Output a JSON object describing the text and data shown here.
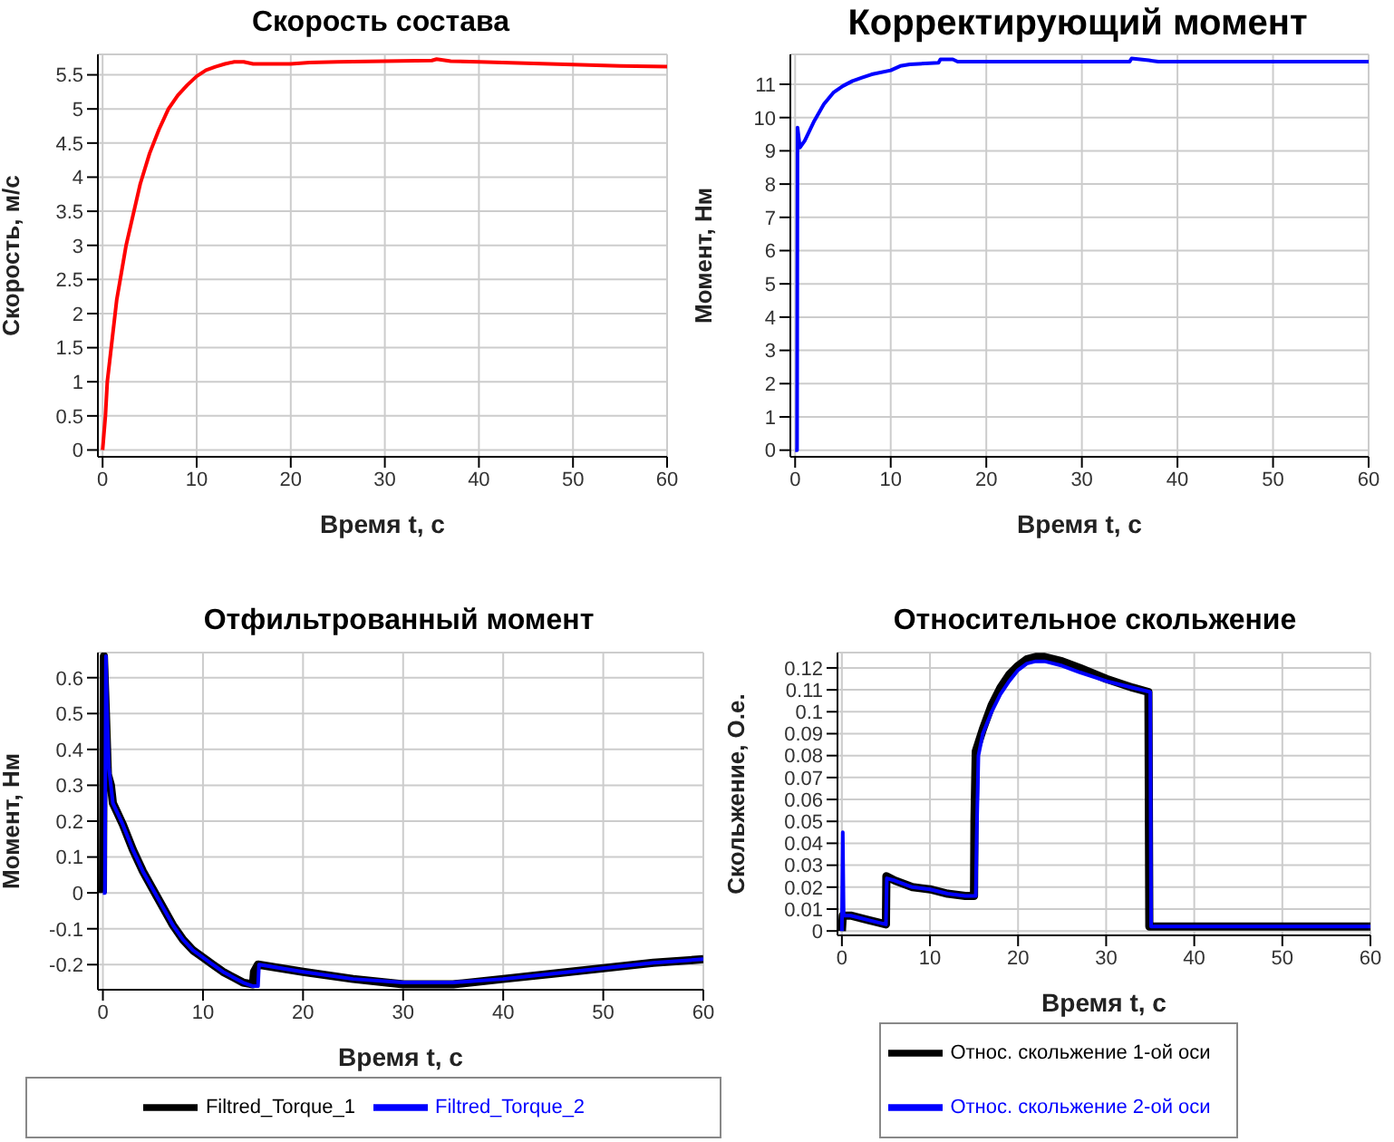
{
  "chart_data": [
    {
      "type": "line",
      "title": "Скорость состава",
      "xlabel": "Время t, с",
      "ylabel": "Скорость, м/с",
      "xlim": [
        -0.5,
        60
      ],
      "xticks": [
        0,
        10,
        20,
        30,
        40,
        50,
        60
      ],
      "ylim": [
        -0.1,
        5.8
      ],
      "yticks": [
        0,
        0.5,
        1,
        1.5,
        2,
        2.5,
        3,
        3.5,
        4,
        4.5,
        5,
        5.5
      ],
      "grid": true,
      "series": [
        {
          "color": "#ff0000",
          "x": [
            0,
            0.3,
            0.5,
            1,
            1.5,
            2,
            2.5,
            3,
            4,
            5,
            6,
            7,
            8,
            9,
            10,
            11,
            12,
            13,
            14,
            15,
            16,
            20,
            22,
            25,
            30,
            35,
            35.5,
            37,
            40,
            45,
            50,
            55,
            60
          ],
          "values": [
            0,
            0.5,
            1,
            1.6,
            2.2,
            2.6,
            3.0,
            3.3,
            3.9,
            4.35,
            4.7,
            5.0,
            5.2,
            5.35,
            5.48,
            5.57,
            5.62,
            5.66,
            5.69,
            5.69,
            5.66,
            5.66,
            5.68,
            5.69,
            5.7,
            5.71,
            5.73,
            5.7,
            5.69,
            5.67,
            5.65,
            5.63,
            5.62
          ]
        }
      ]
    },
    {
      "type": "line",
      "title": "Корректирующий момент",
      "xlabel": "Время t, с",
      "ylabel": "Момент, Нм",
      "xlim": [
        -0.5,
        60
      ],
      "xticks": [
        0,
        10,
        20,
        30,
        40,
        50,
        60
      ],
      "ylim": [
        -0.2,
        11.9
      ],
      "yticks": [
        0,
        1,
        2,
        3,
        4,
        5,
        6,
        7,
        8,
        9,
        10,
        11
      ],
      "grid": true,
      "series": [
        {
          "color": "#0000ff",
          "x": [
            0,
            0.2,
            0.25,
            0.5,
            1,
            2,
            3,
            4,
            5,
            6,
            7,
            8,
            10,
            11,
            12,
            15,
            15.2,
            16.5,
            17,
            35,
            35.2,
            37,
            38,
            60
          ],
          "values": [
            0,
            0,
            9.7,
            9.1,
            9.3,
            9.9,
            10.4,
            10.75,
            10.95,
            11.1,
            11.2,
            11.3,
            11.42,
            11.55,
            11.6,
            11.65,
            11.75,
            11.75,
            11.68,
            11.68,
            11.78,
            11.72,
            11.68,
            11.68
          ]
        }
      ]
    },
    {
      "type": "line",
      "title": "Отфильтрованный момент",
      "xlabel": "Время t, с",
      "ylabel": "Момент, Нм",
      "xlim": [
        -0.5,
        60
      ],
      "xticks": [
        0,
        10,
        20,
        30,
        40,
        50,
        60
      ],
      "ylim": [
        -0.27,
        0.67
      ],
      "yticks": [
        -0.2,
        -0.1,
        0,
        0.1,
        0.2,
        0.3,
        0.4,
        0.5,
        0.6
      ],
      "grid": true,
      "legend": "bottom",
      "series": [
        {
          "name": "Filtred_Torque_1",
          "color": "#000000",
          "x": [
            0,
            0.1,
            0.3,
            0.5,
            0.8,
            1,
            2,
            3,
            4,
            5,
            6,
            7,
            8,
            9,
            10,
            11,
            12,
            13,
            14,
            15,
            15.1,
            15.5,
            20,
            25,
            30,
            35,
            40,
            45,
            50,
            55,
            60
          ],
          "values": [
            0,
            0.66,
            0.5,
            0.33,
            0.3,
            0.25,
            0.19,
            0.12,
            0.06,
            0.01,
            -0.04,
            -0.09,
            -0.13,
            -0.16,
            -0.18,
            -0.2,
            -0.22,
            -0.235,
            -0.25,
            -0.255,
            -0.22,
            -0.2,
            -0.22,
            -0.24,
            -0.255,
            -0.255,
            -0.24,
            -0.225,
            -0.21,
            -0.195,
            -0.185
          ]
        },
        {
          "name": "Filtred_Torque_2",
          "color": "#0000ff",
          "x": [
            0,
            0.2,
            0.3,
            0.4,
            0.6,
            0.8,
            1,
            2,
            3,
            4,
            5,
            6,
            7,
            8,
            9,
            10,
            11,
            12,
            13,
            14,
            15,
            15.5,
            15.6,
            20,
            25,
            30,
            35,
            40,
            45,
            50,
            55,
            60
          ],
          "values": [
            0,
            0,
            0.66,
            0.52,
            0.35,
            0.3,
            0.25,
            0.19,
            0.12,
            0.06,
            0.01,
            -0.04,
            -0.09,
            -0.13,
            -0.16,
            -0.18,
            -0.2,
            -0.22,
            -0.235,
            -0.25,
            -0.26,
            -0.26,
            -0.2,
            -0.22,
            -0.24,
            -0.25,
            -0.25,
            -0.24,
            -0.225,
            -0.21,
            -0.195,
            -0.185
          ]
        }
      ]
    },
    {
      "type": "line",
      "title": "Относительное скольжение",
      "xlabel": "Время t, с",
      "ylabel": "Скольжение, О.е.",
      "xlim": [
        -0.5,
        60
      ],
      "xticks": [
        0,
        10,
        20,
        30,
        40,
        50,
        60
      ],
      "ylim": [
        -0.002,
        0.127
      ],
      "yticks": [
        0,
        0.01,
        0.02,
        0.03,
        0.04,
        0.05,
        0.06,
        0.07,
        0.08,
        0.09,
        0.1,
        0.11,
        0.12
      ],
      "grid": true,
      "legend": "bottom",
      "series": [
        {
          "name": "Относ. скольжение 1-ой оси",
          "color": "#000000",
          "x": [
            0,
            0.1,
            1,
            3,
            5,
            5.05,
            6,
            8,
            10,
            12,
            14,
            15,
            15.05,
            15.2,
            16,
            17,
            18,
            19,
            20,
            21,
            22,
            23,
            25,
            27,
            30,
            33,
            34.8,
            34.9,
            60
          ],
          "values": [
            0,
            0.007,
            0.007,
            0.005,
            0.003,
            0.025,
            0.023,
            0.02,
            0.019,
            0.017,
            0.016,
            0.016,
            0.05,
            0.082,
            0.092,
            0.103,
            0.111,
            0.117,
            0.121,
            0.124,
            0.125,
            0.125,
            0.123,
            0.12,
            0.115,
            0.111,
            0.109,
            0.002,
            0.002
          ]
        },
        {
          "name": "Относ. скольжение 2-ой оси",
          "color": "#0000ff",
          "x": [
            0,
            0.1,
            0.2,
            1,
            3,
            5,
            5.1,
            6,
            8,
            10,
            12,
            14,
            15.2,
            15.3,
            15.5,
            16,
            17,
            18,
            19,
            20,
            21,
            22,
            23,
            25,
            27,
            30,
            33,
            35,
            35.1,
            60
          ],
          "values": [
            0,
            0.045,
            0.007,
            0.007,
            0.005,
            0.003,
            0.024,
            0.023,
            0.02,
            0.019,
            0.017,
            0.016,
            0.016,
            0.043,
            0.08,
            0.09,
            0.1,
            0.108,
            0.114,
            0.119,
            0.122,
            0.123,
            0.123,
            0.121,
            0.118,
            0.114,
            0.111,
            0.109,
            0.002,
            0.002
          ]
        }
      ]
    }
  ]
}
